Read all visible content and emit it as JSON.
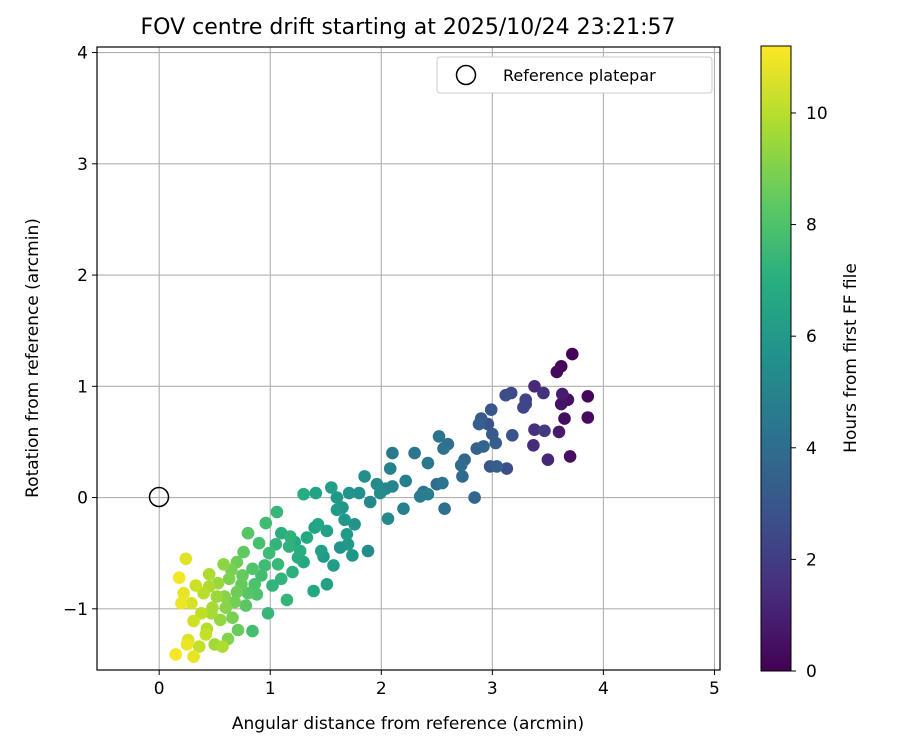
{
  "chart_data": {
    "type": "scatter",
    "title": "FOV centre drift starting at 2025/10/24 23:21:57",
    "xlabel": "Angular distance from reference (arcmin)",
    "ylabel": "Rotation from reference (arcmin)",
    "xlim": [
      -0.56,
      5.05
    ],
    "ylim": [
      -1.55,
      4.05
    ],
    "xticks": [
      0,
      1,
      2,
      3,
      4,
      5
    ],
    "yticks": [
      -1,
      0,
      1,
      2,
      3,
      4
    ],
    "xtick_labels": [
      "0",
      "1",
      "2",
      "3",
      "4",
      "5"
    ],
    "ytick_labels": [
      "−1",
      "0",
      "1",
      "2",
      "3",
      "4"
    ],
    "grid": true,
    "legend": {
      "position": "top-right",
      "entries": [
        "Reference platepar"
      ]
    },
    "reference_point": {
      "name": "Reference platepar",
      "x": 0,
      "y": 0,
      "marker": "open-circle"
    },
    "colorbar": {
      "label": "Hours from first FF file",
      "min": 0,
      "max": 11.2,
      "ticks": [
        0,
        2,
        4,
        6,
        8,
        10
      ],
      "tick_labels": [
        "0",
        "2",
        "4",
        "6",
        "8",
        "10"
      ],
      "colormap": "viridis"
    },
    "series": [
      {
        "points": [
          [
            3.72,
            1.29,
            0.1
          ],
          [
            3.62,
            1.18,
            0.2
          ],
          [
            3.58,
            1.13,
            0.3
          ],
          [
            3.86,
            0.91,
            0.2
          ],
          [
            3.86,
            0.72,
            0.3
          ],
          [
            3.68,
            0.88,
            0.5
          ],
          [
            3.65,
            0.71,
            0.4
          ],
          [
            3.62,
            0.84,
            0.6
          ],
          [
            3.7,
            0.37,
            0.4
          ],
          [
            3.63,
            0.93,
            0.9
          ],
          [
            3.6,
            0.59,
            0.8
          ],
          [
            3.5,
            0.34,
            1.2
          ],
          [
            3.46,
            0.94,
            1.6
          ],
          [
            3.38,
            1.0,
            1.3
          ],
          [
            3.38,
            0.61,
            1.5
          ],
          [
            3.47,
            0.6,
            1.9
          ],
          [
            3.37,
            0.47,
            1.4
          ],
          [
            3.3,
            0.84,
            2.1
          ],
          [
            3.28,
            0.81,
            2.3
          ],
          [
            3.3,
            0.88,
            2.2
          ],
          [
            3.17,
            0.94,
            2.5
          ],
          [
            3.12,
            0.92,
            2.6
          ],
          [
            3.13,
            0.26,
            2.7
          ],
          [
            3.18,
            0.56,
            2.8
          ],
          [
            2.99,
            0.79,
            3.0
          ],
          [
            2.96,
            0.66,
            2.9
          ],
          [
            2.9,
            0.71,
            3.2
          ],
          [
            3.0,
            0.57,
            3.1
          ],
          [
            3.03,
            0.49,
            3.3
          ],
          [
            2.98,
            0.28,
            3.0
          ],
          [
            3.04,
            0.28,
            3.3
          ],
          [
            2.88,
            0.66,
            3.4
          ],
          [
            2.92,
            0.46,
            3.6
          ],
          [
            2.86,
            0.44,
            3.5
          ],
          [
            2.84,
            0.0,
            3.7
          ],
          [
            2.75,
            0.34,
            3.8
          ],
          [
            2.73,
            0.19,
            3.9
          ],
          [
            2.72,
            0.29,
            4.0
          ],
          [
            2.6,
            0.48,
            4.1
          ],
          [
            2.56,
            0.44,
            4.2
          ],
          [
            2.52,
            0.55,
            4.3
          ],
          [
            2.5,
            0.12,
            4.0
          ],
          [
            2.57,
            -0.1,
            4.1
          ],
          [
            2.55,
            0.13,
            4.4
          ],
          [
            2.42,
            0.31,
            4.5
          ],
          [
            2.38,
            0.05,
            4.3
          ],
          [
            2.35,
            0.01,
            4.6
          ],
          [
            2.3,
            0.4,
            4.4
          ],
          [
            2.42,
            0.03,
            4.7
          ],
          [
            2.22,
            0.15,
            4.8
          ],
          [
            2.2,
            -0.1,
            4.9
          ],
          [
            2.1,
            0.4,
            4.5
          ],
          [
            2.08,
            0.26,
            4.9
          ],
          [
            2.1,
            0.1,
            5.0
          ],
          [
            2.04,
            0.08,
            5.1
          ],
          [
            2.06,
            -0.19,
            5.2
          ],
          [
            1.96,
            0.12,
            5.3
          ],
          [
            1.99,
            0.04,
            5.4
          ],
          [
            1.9,
            -0.04,
            5.2
          ],
          [
            1.85,
            0.19,
            5.5
          ],
          [
            1.88,
            -0.48,
            5.4
          ],
          [
            1.8,
            0.04,
            5.6
          ],
          [
            1.71,
            0.04,
            5.8
          ],
          [
            1.76,
            -0.24,
            5.7
          ],
          [
            1.74,
            -0.52,
            5.9
          ],
          [
            1.67,
            -0.2,
            6.0
          ],
          [
            1.6,
            -0.11,
            6.1
          ],
          [
            1.63,
            -0.45,
            5.8
          ],
          [
            1.57,
            -0.61,
            6.2
          ],
          [
            1.55,
            0.09,
            6.3
          ],
          [
            1.51,
            -0.3,
            6.4
          ],
          [
            1.48,
            -0.53,
            6.1
          ],
          [
            1.41,
            0.04,
            6.5
          ],
          [
            1.43,
            -0.24,
            6.6
          ],
          [
            1.46,
            -0.48,
            6.3
          ],
          [
            1.51,
            -0.78,
            6.4
          ],
          [
            1.39,
            -0.84,
            6.7
          ],
          [
            1.33,
            -0.36,
            6.8
          ],
          [
            1.3,
            0.03,
            6.9
          ],
          [
            1.27,
            -0.48,
            7.0
          ],
          [
            1.22,
            -0.4,
            6.8
          ],
          [
            1.2,
            -0.67,
            7.1
          ],
          [
            1.17,
            -0.44,
            7.2
          ],
          [
            1.15,
            -0.92,
            7.3
          ],
          [
            1.1,
            -0.32,
            7.0
          ],
          [
            1.06,
            -0.13,
            7.4
          ],
          [
            1.07,
            -0.6,
            7.5
          ],
          [
            1.02,
            -0.79,
            7.3
          ],
          [
            0.99,
            -0.5,
            7.6
          ],
          [
            0.96,
            -0.23,
            7.7
          ],
          [
            0.98,
            -1.04,
            7.4
          ],
          [
            0.92,
            -0.7,
            7.8
          ],
          [
            0.9,
            -0.41,
            7.9
          ],
          [
            0.88,
            -0.87,
            8.0
          ],
          [
            0.84,
            -0.64,
            8.1
          ],
          [
            0.84,
            -1.2,
            7.8
          ],
          [
            0.8,
            -0.32,
            8.2
          ],
          [
            0.78,
            -0.97,
            8.3
          ],
          [
            0.76,
            -0.49,
            8.4
          ],
          [
            0.74,
            -0.78,
            8.5
          ],
          [
            0.71,
            -1.19,
            8.6
          ],
          [
            0.7,
            -0.58,
            8.7
          ],
          [
            0.68,
            -0.94,
            8.8
          ],
          [
            0.66,
            -1.08,
            8.9
          ],
          [
            0.63,
            -0.73,
            9.0
          ],
          [
            0.62,
            -1.27,
            9.1
          ],
          [
            0.59,
            -0.89,
            9.2
          ],
          [
            0.58,
            -0.6,
            9.3
          ],
          [
            0.55,
            -1.1,
            9.4
          ],
          [
            0.53,
            -0.77,
            9.5
          ],
          [
            0.5,
            -1.32,
            9.6
          ],
          [
            0.48,
            -0.99,
            9.7
          ],
          [
            0.45,
            -0.69,
            9.8
          ],
          [
            0.43,
            -1.18,
            9.9
          ],
          [
            0.4,
            -0.86,
            10.0
          ],
          [
            0.38,
            -1.04,
            10.1
          ],
          [
            0.36,
            -1.34,
            10.2
          ],
          [
            0.33,
            -0.79,
            10.3
          ],
          [
            0.31,
            -1.11,
            10.4
          ],
          [
            0.29,
            -0.95,
            10.5
          ],
          [
            0.26,
            -1.28,
            10.6
          ],
          [
            0.24,
            -0.55,
            10.7
          ],
          [
            0.22,
            -0.86,
            10.8
          ],
          [
            0.2,
            -0.95,
            10.9
          ],
          [
            0.18,
            -0.72,
            11.0
          ],
          [
            0.15,
            -1.41,
            11.1
          ],
          [
            0.31,
            -1.43,
            10.8
          ],
          [
            0.25,
            -1.32,
            10.9
          ],
          [
            0.42,
            -1.23,
            10.2
          ],
          [
            0.57,
            -1.34,
            9.8
          ],
          [
            1.6,
            0.0,
            6.0
          ],
          [
            1.69,
            -0.33,
            6.1
          ],
          [
            1.65,
            -0.09,
            5.9
          ],
          [
            1.7,
            -0.42,
            6.0
          ],
          [
            1.4,
            -0.27,
            6.5
          ],
          [
            1.3,
            -0.58,
            6.8
          ],
          [
            1.25,
            -0.54,
            6.9
          ],
          [
            1.18,
            -0.35,
            7.2
          ],
          [
            1.1,
            -0.73,
            7.3
          ],
          [
            1.05,
            -0.42,
            7.3
          ],
          [
            0.95,
            -0.61,
            7.6
          ],
          [
            0.86,
            -0.78,
            8.0
          ],
          [
            0.8,
            -0.86,
            8.2
          ],
          [
            0.75,
            -0.7,
            8.5
          ],
          [
            0.7,
            -0.85,
            8.7
          ],
          [
            0.65,
            -0.65,
            8.9
          ],
          [
            0.6,
            -0.99,
            9.2
          ],
          [
            0.52,
            -0.89,
            9.5
          ],
          [
            0.47,
            -1.04,
            9.7
          ],
          [
            0.45,
            -0.8,
            9.8
          ]
        ]
      }
    ]
  }
}
